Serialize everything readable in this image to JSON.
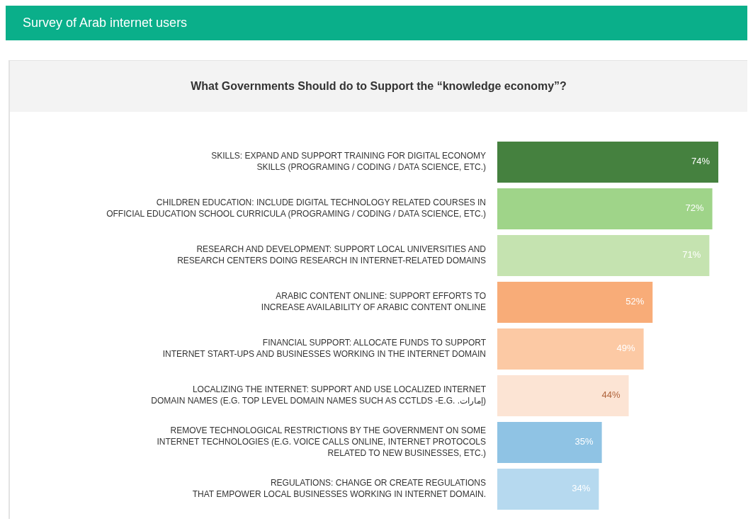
{
  "chart_data": {
    "type": "bar",
    "orientation": "horizontal",
    "title": "Survey of Arab internet users",
    "subtitle": "What Governments Should do to Support the “knowledge economy”?",
    "categories": [
      "SKILLS: EXPAND AND SUPPORT TRAINING FOR DIGITAL ECONOMY\nSKILLS (PROGRAMING / CODING / DATA SCIENCE, ETC.)",
      "CHILDREN EDUCATION: INCLUDE DIGITAL TECHNOLOGY RELATED COURSES IN\nOFFICIAL EDUCATION SCHOOL CURRICULA (PROGRAMING / CODING / DATA SCIENCE, ETC.)",
      "RESEARCH AND DEVELOPMENT: SUPPORT LOCAL UNIVERSITIES AND\nRESEARCH CENTERS DOING RESEARCH IN INTERNET-RELATED DOMAINS",
      "ARABIC CONTENT ONLINE: SUPPORT EFFORTS TO\nINCREASE AVAILABILITY OF ARABIC CONTENT ONLINE",
      "FINANCIAL SUPPORT: ALLOCATE FUNDS TO SUPPORT\nINTERNET START-UPS AND BUSINESSES WORKING IN THE INTERNET DOMAIN",
      "LOCALIZING THE INTERNET: SUPPORT AND USE LOCALIZED INTERNET\nDOMAIN NAMES (E.G. TOP LEVEL DOMAIN NAMES SUCH AS CCTLDS -E.G. .إمارات)",
      "REMOVE TECHNOLOGICAL RESTRICTIONS BY THE GOVERNMENT ON SOME\nINTERNET TECHNOLOGIES (E.G. VOICE CALLS ONLINE, INTERNET PROTOCOLS\nRELATED TO NEW BUSINESSES, ETC.)",
      "REGULATIONS: CHANGE OR CREATE REGULATIONS\nTHAT EMPOWER LOCAL BUSINESSES WORKING IN INTERNET DOMAIN."
    ],
    "values": [
      74,
      72,
      71,
      52,
      49,
      44,
      35,
      34
    ],
    "value_labels": [
      "74%",
      "72%",
      "71%",
      "52%",
      "49%",
      "44%",
      "35%",
      "34%"
    ],
    "colors": [
      "#45813f",
      "#9fd489",
      "#c5e3b0",
      "#f8ac78",
      "#fcc9a4",
      "#fce4d4",
      "#8fc3e4",
      "#b6d9ef"
    ],
    "tick_labels": "y"
  }
}
